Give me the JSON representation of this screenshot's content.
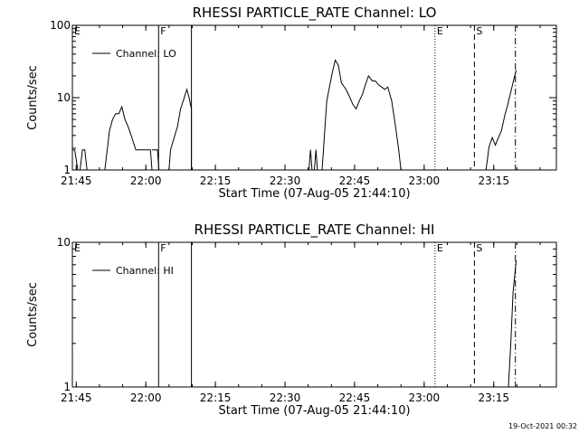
{
  "footer": {
    "timestamp": "19-Oct-2021 00:32"
  },
  "chart_data": [
    {
      "type": "line",
      "title": "RHESSI PARTICLE_RATE Channel: LO",
      "xlabel": "Start Time (07-Aug-05 21:44:10)",
      "ylabel": "Counts/sec",
      "yscale": "log",
      "xlim": [
        "21:44:10",
        "23:28:30"
      ],
      "ylim": [
        1,
        100
      ],
      "xticks": [
        "21:45",
        "22:00",
        "22:15",
        "22:30",
        "22:45",
        "23:00",
        "23:15"
      ],
      "yticks": [
        {
          "value": 1,
          "label": "1"
        },
        {
          "value": 10,
          "label": "10"
        },
        {
          "value": 100,
          "label": "100"
        }
      ],
      "legend": {
        "position": "top-left",
        "entries": [
          "Channel: LO"
        ]
      },
      "markers": [
        {
          "label": "E",
          "time": "21:44:10",
          "style": "none"
        },
        {
          "label": "F",
          "time": "22:02:45",
          "style": "solid"
        },
        {
          "label": "",
          "time": "22:09:50",
          "style": "solid"
        },
        {
          "label": "E",
          "time": "23:02:20",
          "style": "dotted"
        },
        {
          "label": "S",
          "time": "23:10:50",
          "style": "dashed"
        },
        {
          "label": "",
          "time": "23:19:40",
          "style": "dashdot"
        }
      ],
      "series": [
        {
          "name": "Channel: LO",
          "segments": [
            [
              [
                "21:44:10",
                1.9
              ],
              [
                "21:44:40",
                1.9
              ],
              [
                "21:45:20",
                1
              ]
            ],
            [
              [
                "21:45:50",
                1
              ],
              [
                "21:46:20",
                1.9
              ],
              [
                "21:46:50",
                1.9
              ],
              [
                "21:47:20",
                1
              ]
            ],
            [
              [
                "21:51:10",
                1
              ],
              [
                "21:52:10",
                3.5
              ],
              [
                "21:52:50",
                5
              ],
              [
                "21:53:30",
                6
              ],
              [
                "21:54:10",
                6
              ],
              [
                "21:54:50",
                7.5
              ],
              [
                "21:55:30",
                5
              ],
              [
                "21:56:10",
                4
              ],
              [
                "21:56:50",
                3
              ],
              [
                "21:57:20",
                2.4
              ],
              [
                "21:57:50",
                1.9
              ],
              [
                "22:01:00",
                1.9
              ],
              [
                "22:01:20",
                1
              ]
            ],
            [
              [
                "22:01:20",
                1.9
              ],
              [
                "22:02:30",
                1.9
              ],
              [
                "22:02:50",
                1
              ]
            ],
            [
              [
                "22:05:00",
                1
              ],
              [
                "22:05:20",
                1.9
              ],
              [
                "22:06:50",
                4
              ],
              [
                "22:07:30",
                7
              ],
              [
                "22:08:10",
                9.5
              ],
              [
                "22:08:50",
                13
              ],
              [
                "22:09:20",
                10
              ],
              [
                "22:09:50",
                7
              ],
              [
                "22:09:50",
                1
              ]
            ],
            [
              [
                "22:35:10",
                1
              ],
              [
                "22:35:30",
                1.9
              ],
              [
                "22:35:50",
                1
              ]
            ],
            [
              [
                "22:36:20",
                1
              ],
              [
                "22:36:40",
                1.9
              ],
              [
                "22:37:00",
                1
              ]
            ],
            [
              [
                "22:38:00",
                1
              ],
              [
                "22:39:00",
                9
              ],
              [
                "22:40:10",
                22
              ],
              [
                "22:40:50",
                33
              ],
              [
                "22:41:30",
                28
              ],
              [
                "22:42:10",
                16
              ],
              [
                "22:43:10",
                13
              ],
              [
                "22:44:00",
                10
              ],
              [
                "22:44:40",
                8
              ],
              [
                "22:45:20",
                7
              ],
              [
                "22:46:00",
                9
              ],
              [
                "22:46:40",
                11
              ],
              [
                "22:47:20",
                15
              ],
              [
                "22:48:00",
                20
              ],
              [
                "22:48:50",
                17
              ],
              [
                "22:49:30",
                17
              ],
              [
                "22:50:10",
                15
              ],
              [
                "22:50:50",
                14
              ],
              [
                "22:51:30",
                13
              ],
              [
                "22:52:10",
                14
              ],
              [
                "22:53:00",
                9
              ],
              [
                "22:53:50",
                4
              ],
              [
                "22:54:30",
                1.9
              ],
              [
                "22:55:00",
                1
              ]
            ],
            [
              [
                "23:13:20",
                1
              ],
              [
                "23:14:00",
                2.1
              ],
              [
                "23:14:40",
                2.8
              ],
              [
                "23:15:20",
                2.2
              ],
              [
                "23:16:00",
                2.8
              ],
              [
                "23:16:40",
                3.5
              ],
              [
                "23:17:20",
                5.5
              ],
              [
                "23:18:00",
                8
              ],
              [
                "23:18:40",
                12
              ],
              [
                "23:19:20",
                18
              ],
              [
                "23:19:50",
                24
              ]
            ]
          ]
        }
      ]
    },
    {
      "type": "line",
      "title": "RHESSI PARTICLE_RATE Channel: HI",
      "xlabel": "Start Time (07-Aug-05 21:44:10)",
      "ylabel": "Counts/sec",
      "yscale": "log",
      "xlim": [
        "21:44:10",
        "23:28:30"
      ],
      "ylim": [
        1,
        10
      ],
      "xticks": [
        "21:45",
        "22:00",
        "22:15",
        "22:30",
        "22:45",
        "23:00",
        "23:15"
      ],
      "yticks": [
        {
          "value": 1,
          "label": "1"
        },
        {
          "value": 10,
          "label": "10"
        }
      ],
      "legend": {
        "position": "top-left",
        "entries": [
          "Channel: HI"
        ]
      },
      "markers": [
        {
          "label": "E",
          "time": "21:44:10",
          "style": "none"
        },
        {
          "label": "F",
          "time": "22:02:45",
          "style": "solid"
        },
        {
          "label": "",
          "time": "22:09:50",
          "style": "solid"
        },
        {
          "label": "E",
          "time": "23:02:20",
          "style": "dotted"
        },
        {
          "label": "S",
          "time": "23:10:50",
          "style": "dashed"
        },
        {
          "label": "",
          "time": "23:19:40",
          "style": "dashdot"
        }
      ],
      "series": [
        {
          "name": "Channel: HI",
          "segments": [
            [
              [
                "23:18:10",
                1
              ],
              [
                "23:18:40",
                2
              ],
              [
                "23:19:10",
                4.5
              ],
              [
                "23:19:50",
                7.5
              ]
            ]
          ]
        }
      ]
    }
  ]
}
